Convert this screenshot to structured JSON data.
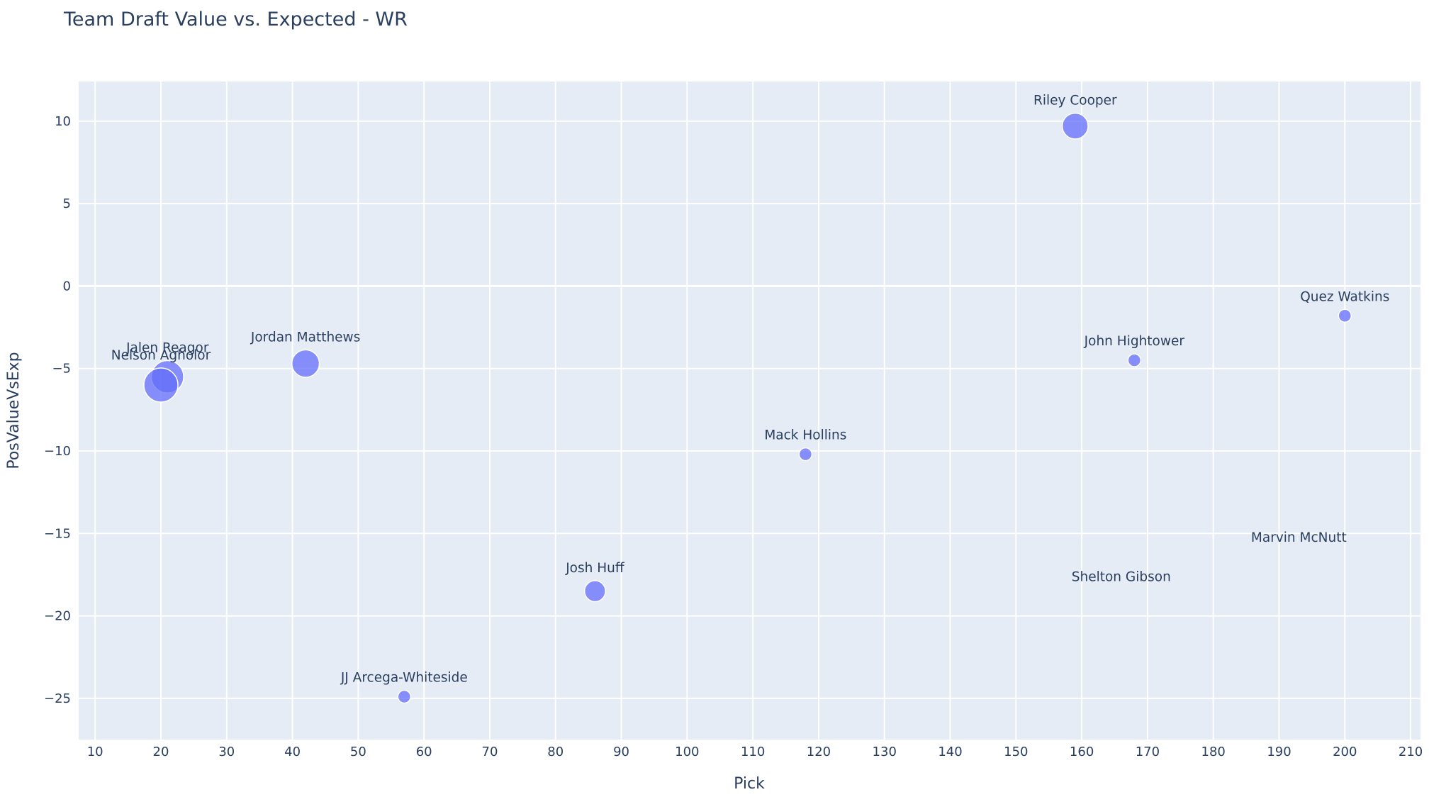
{
  "chart_data": {
    "type": "scatter",
    "title": "Team Draft Value vs. Expected - WR",
    "xlabel": "Pick",
    "ylabel": "PosValueVsExp",
    "xlim": [
      7.5,
      211.5
    ],
    "ylim": [
      -27.5,
      12.4
    ],
    "xticks": [
      10,
      20,
      30,
      40,
      50,
      60,
      70,
      80,
      90,
      100,
      110,
      120,
      130,
      140,
      150,
      160,
      170,
      180,
      190,
      200,
      210
    ],
    "yticks": [
      10,
      5,
      0,
      -5,
      -10,
      -15,
      -20,
      -25
    ],
    "grid": true,
    "legend": "none",
    "marker_color": "#636efa",
    "plot_bgcolor": "#e5ecf6",
    "points": [
      {
        "label": "Riley Cooper",
        "x": 159,
        "y": 9.7,
        "size": 0.8
      },
      {
        "label": "Quez Watkins",
        "x": 200,
        "y": -1.8,
        "size": 0.4
      },
      {
        "label": "John Hightower",
        "x": 168,
        "y": -4.5,
        "size": 0.4
      },
      {
        "label": "Jordan Matthews",
        "x": 42,
        "y": -4.7,
        "size": 0.85
      },
      {
        "label": "Jalen Reagor",
        "x": 21,
        "y": -5.5,
        "size": 1.0
      },
      {
        "label": "Nelson Agholor",
        "x": 20,
        "y": -6.0,
        "size": 1.05
      },
      {
        "label": "Mack Hollins",
        "x": 118,
        "y": -10.2,
        "size": 0.4
      },
      {
        "label": "Marvin McNutt",
        "x": 193,
        "y": -15.5,
        "size": 0.0
      },
      {
        "label": "Shelton Gibson",
        "x": 166,
        "y": -17.9,
        "size": 0.0
      },
      {
        "label": "Josh Huff",
        "x": 86,
        "y": -18.5,
        "size": 0.65
      },
      {
        "label": "JJ Arcega-Whiteside",
        "x": 57,
        "y": -24.9,
        "size": 0.4
      }
    ]
  }
}
